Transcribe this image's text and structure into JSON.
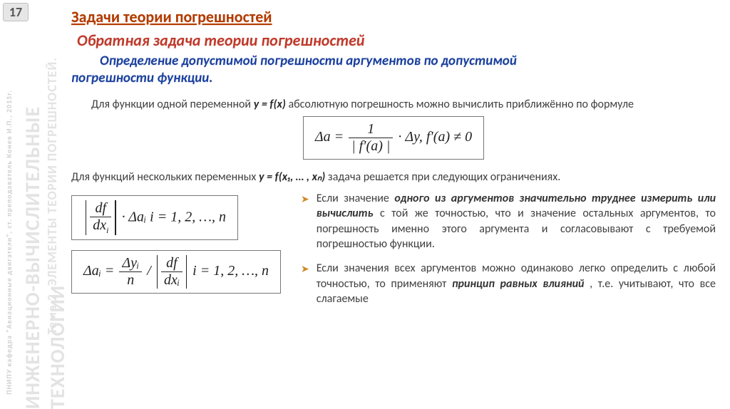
{
  "page_number": "17",
  "watermark": {
    "small": "ПНИПУ кафедра \"Авиационные двигатели\", ст. преподаватель Конев И.П., 2015г.",
    "big1": "ИНЖЕНЕРНО-ВЫЧИСЛИТЕЛЬНЫЕ ТЕХНОЛОГИИ",
    "big2": "Тема 2. ЭЛЕМЕНТЫ ТЕОРИИ ПОГРЕШНОСТЕЙ."
  },
  "titles": {
    "top": "Задачи теории погрешностей",
    "sub": "Обратная задача теории погрешностей",
    "desc_l1": "Определение допустимой погрешности аргументов по допустимой",
    "desc_l2": "погрешности функции."
  },
  "p1_a": "Для функции одной переменной ",
  "p1_y": "y = f(x)",
  "p1_b": "  абсолютную погрешность можно вычислить приближённо по формуле",
  "formula1": {
    "lhs": "Δa =",
    "num": "1",
    "den": "| f′(a) |",
    "tail": " · Δy,        f′(a) ≠ 0"
  },
  "p2_a": "Для функций нескольких переменных  ",
  "p2_y": "y = f(x₁, … , xₙ)",
  "p2_b": "   задача решается при следующих ограничениях.",
  "formula2": {
    "frac_num": "df",
    "frac_den": "dx",
    "tail": " · Δaᵢ    i = 1, 2, …, n"
  },
  "formula3": {
    "lhs": "Δaᵢ = ",
    "f1_num": "Δyᵢ",
    "f1_den": "n",
    "f2_num": "df",
    "f2_den": "dxᵢ",
    "tail": "    i = 1, 2, …, n"
  },
  "bullets": {
    "b1_a": "Если значение ",
    "b1_bold": "одного из аргументов значительно труднее измерить или вычислить",
    "b1_b": " с той же точностью, что и значение остальных аргументов, то погрешность именно этого аргумента и согласовывают с требуемой погрешностью функции.",
    "b2_a": "Если значения всех аргументов можно одинаково легко определить с любой точностью, то применяют ",
    "b2_bold": "принцип равных влияний",
    "b2_b": ", т.е. учитывают, что все слагаемые"
  },
  "colors": {
    "title_top": "#b23a00",
    "title_sub": "#c0392b",
    "title_desc": "#1a3f9c",
    "body_text": "#404040",
    "arrow": "#d08a2a",
    "watermark": "#e3e3e3"
  },
  "typography": {
    "title_fontsize": 22,
    "desc_fontsize": 19,
    "body_fontsize": 16,
    "formula_fontsize": 20
  }
}
